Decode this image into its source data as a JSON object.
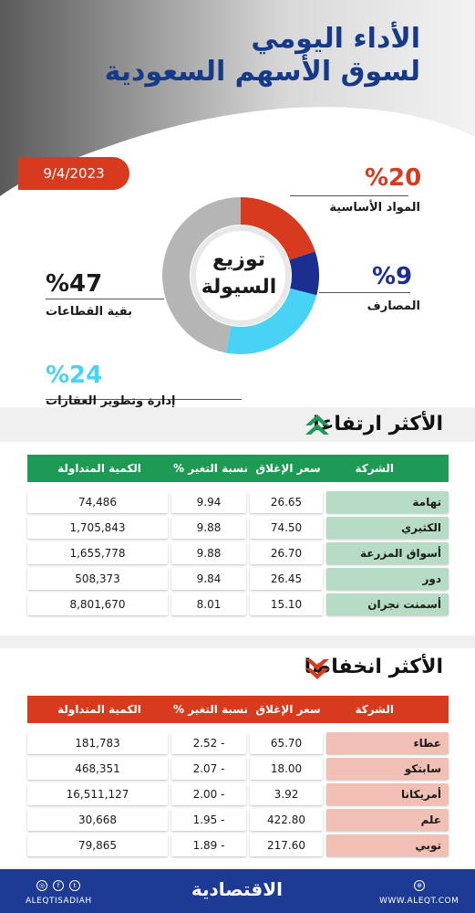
{
  "header": {
    "title_line1": "الأداء اليومي",
    "title_line2": "لسوق الأسهم السعودية",
    "date": "9/4/2023"
  },
  "liquidity": {
    "center_line1": "توزيع",
    "center_line2": "السيولة",
    "segments": [
      {
        "pct": "%20",
        "label": "المواد الأساسية",
        "value": 20,
        "color": "#d83a1e"
      },
      {
        "pct": "%9",
        "label": "المصارف",
        "value": 9,
        "color": "#1a2f8f"
      },
      {
        "pct": "%24",
        "label": "إدارة وتطوير العقارات",
        "value": 24,
        "color": "#48d3f5"
      },
      {
        "pct": "%47",
        "label": "بقية القطاعات",
        "value": 47,
        "color": "#b5b5b5"
      }
    ]
  },
  "gainers": {
    "title": "الأكثر ارتفاعا",
    "header_color": "#1f9a55",
    "name_color": "#b7dcc5",
    "columns": [
      "الشركة",
      "سعر الإغلاق",
      "نسبة التغير %",
      "الكمية المتداولة"
    ],
    "rows": [
      {
        "name": "تهامة",
        "close": "26.65",
        "change": "9.94",
        "volume": "74,486"
      },
      {
        "name": "الكثيري",
        "close": "74.50",
        "change": "9.88",
        "volume": "1,705,843"
      },
      {
        "name": "أسواق المزرعة",
        "close": "26.70",
        "change": "9.88",
        "volume": "1,655,778"
      },
      {
        "name": "دور",
        "close": "26.45",
        "change": "9.84",
        "volume": "508,373"
      },
      {
        "name": "أسمنت نجران",
        "close": "15.10",
        "change": "8.01",
        "volume": "8,801,670"
      }
    ]
  },
  "losers": {
    "title": "الأكثر انخفاضا",
    "header_color": "#d83a1e",
    "name_color": "#f1bfb3",
    "columns": [
      "الشركة",
      "سعر الإغلاق",
      "نسبة التغير %",
      "الكمية المتداولة"
    ],
    "rows": [
      {
        "name": "عطاء",
        "close": "65.70",
        "change": "2.52 -",
        "volume": "181,783"
      },
      {
        "name": "سابتكو",
        "close": "18.00",
        "change": "2.07 -",
        "volume": "468,351"
      },
      {
        "name": "أمريكانا",
        "close": "3.92",
        "change": "2.00 -",
        "volume": "16,511,127"
      },
      {
        "name": "علم",
        "close": "422.80",
        "change": "1.95 -",
        "volume": "30,668"
      },
      {
        "name": "توبي",
        "close": "217.60",
        "change": "1.89 -",
        "volume": "79,865"
      }
    ]
  },
  "footer": {
    "handle": "ALEQTISADIAH",
    "logo": "الاقتصادية",
    "website": "WWW.ALEQT.COM"
  }
}
